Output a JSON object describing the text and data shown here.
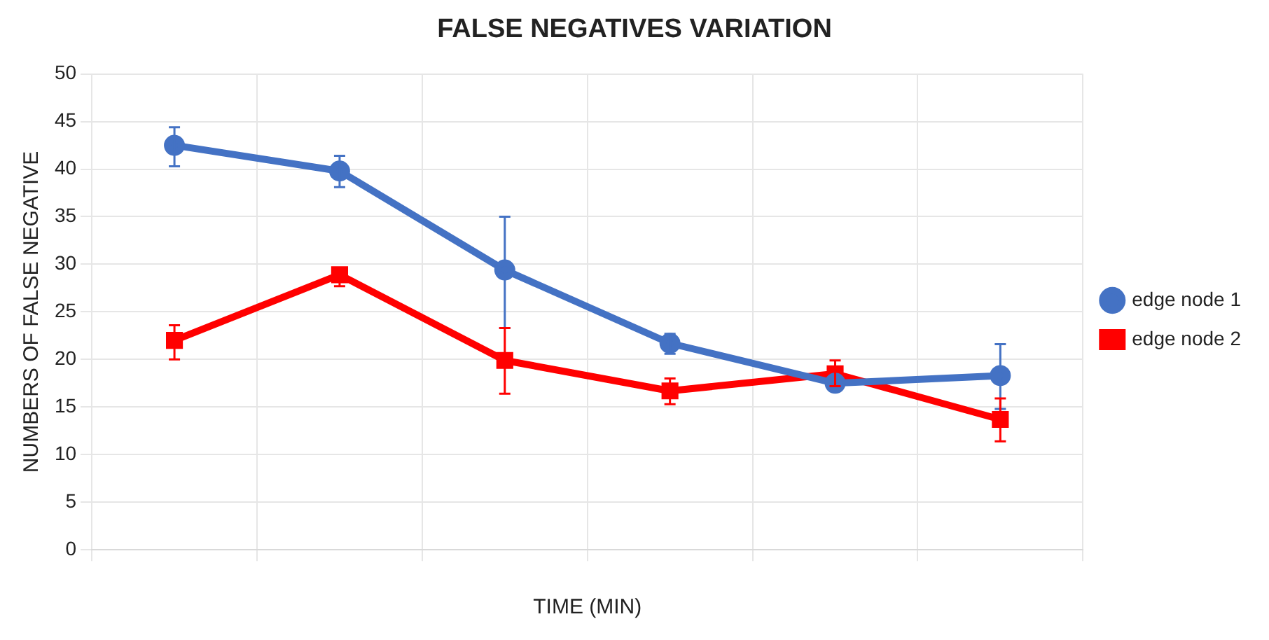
{
  "chart_data": {
    "type": "line",
    "title": "FALSE NEGATIVES VARIATION",
    "xlabel": "TIME (MIN)",
    "ylabel": "NUMBERS OF FALSE NEGATIVE",
    "categories": [
      null,
      null,
      null,
      null,
      null,
      null
    ],
    "series": [
      {
        "name": "edge node 1",
        "color": "#4472c4",
        "marker": "circle",
        "values": [
          42.5,
          39.8,
          29.4,
          21.7,
          17.5,
          18.3
        ],
        "errors": [
          [
            40.3,
            44.4
          ],
          [
            38.1,
            41.4
          ],
          [
            23.3,
            35.0
          ],
          [
            20.6,
            22.7
          ],
          null,
          [
            14.8,
            21.6
          ]
        ]
      },
      {
        "name": "edge node 2",
        "color": "#ff0000",
        "marker": "square",
        "values": [
          22.0,
          28.9,
          19.9,
          16.7,
          18.5,
          13.7
        ],
        "errors": [
          [
            20.0,
            23.6
          ],
          [
            27.7,
            29.6
          ],
          [
            16.4,
            23.3
          ],
          [
            15.3,
            18.0
          ],
          [
            17.2,
            19.9
          ],
          [
            11.4,
            15.9
          ]
        ]
      }
    ],
    "ylim": [
      0,
      50
    ],
    "yticks": [
      0,
      5,
      10,
      15,
      20,
      25,
      30,
      35,
      40,
      45,
      50
    ],
    "grid": true,
    "legend": "right"
  }
}
